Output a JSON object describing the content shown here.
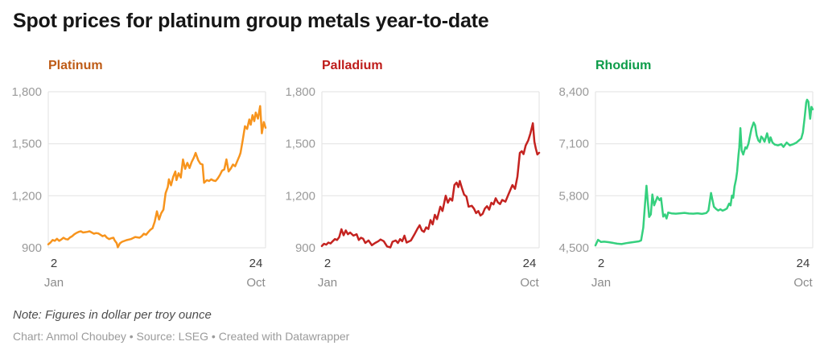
{
  "header": {
    "title": "Spot prices for platinum group metals year-to-date"
  },
  "footer": {
    "note": "Note: Figures in dollar per troy ounce",
    "byline": "Chart: Anmol Choubey • Source: LSEG • Created with Datawrapper"
  },
  "style": {
    "background": "#ffffff",
    "title_color": "#161616",
    "grid_color": "#e2e2e2",
    "axis_label_color": "#9a9a9a",
    "day_label_color": "#3c3c3c",
    "month_label_color": "#8b8b8b",
    "note_color": "#4e4e4e",
    "byline_color": "#9b9b9b"
  },
  "chart_data": [
    {
      "type": "line",
      "title": "Platinum",
      "unit": "dollar per troy ounce",
      "title_color": "#be5b16",
      "line_color": "#f7941d",
      "grid": true,
      "legend": "none",
      "ylim": [
        900,
        1800
      ],
      "y_ticks": [
        {
          "value": 1800,
          "label": "1,800"
        },
        {
          "value": 1500,
          "label": "1,500"
        },
        {
          "value": 1200,
          "label": "1,200"
        },
        {
          "value": 900,
          "label": "900"
        }
      ],
      "x_axis": {
        "start_day": "2",
        "start_month": "Jan",
        "end_day": "24",
        "end_month": "Oct"
      },
      "points": [
        [
          0,
          920
        ],
        [
          0.01,
          930
        ],
        [
          0.02,
          945
        ],
        [
          0.03,
          940
        ],
        [
          0.04,
          952
        ],
        [
          0.05,
          940
        ],
        [
          0.06,
          948
        ],
        [
          0.07,
          958
        ],
        [
          0.08,
          950
        ],
        [
          0.09,
          948
        ],
        [
          0.1,
          960
        ],
        [
          0.11,
          967
        ],
        [
          0.12,
          978
        ],
        [
          0.13,
          986
        ],
        [
          0.14,
          992
        ],
        [
          0.15,
          995
        ],
        [
          0.16,
          988
        ],
        [
          0.17,
          990
        ],
        [
          0.18,
          992
        ],
        [
          0.19,
          995
        ],
        [
          0.2,
          988
        ],
        [
          0.21,
          981
        ],
        [
          0.22,
          985
        ],
        [
          0.23,
          983
        ],
        [
          0.24,
          975
        ],
        [
          0.25,
          967
        ],
        [
          0.26,
          972
        ],
        [
          0.27,
          958
        ],
        [
          0.28,
          950
        ],
        [
          0.29,
          955
        ],
        [
          0.3,
          958
        ],
        [
          0.305,
          944
        ],
        [
          0.315,
          926
        ],
        [
          0.32,
          903
        ],
        [
          0.33,
          926
        ],
        [
          0.34,
          935
        ],
        [
          0.36,
          944
        ],
        [
          0.38,
          950
        ],
        [
          0.4,
          962
        ],
        [
          0.42,
          958
        ],
        [
          0.43,
          967
        ],
        [
          0.44,
          981
        ],
        [
          0.45,
          975
        ],
        [
          0.46,
          990
        ],
        [
          0.47,
          1004
        ],
        [
          0.48,
          1013
        ],
        [
          0.49,
          1051
        ],
        [
          0.5,
          1110
        ],
        [
          0.51,
          1063
        ],
        [
          0.52,
          1100
        ],
        [
          0.53,
          1120
        ],
        [
          0.54,
          1215
        ],
        [
          0.55,
          1250
        ],
        [
          0.555,
          1295
        ],
        [
          0.565,
          1260
        ],
        [
          0.575,
          1310
        ],
        [
          0.585,
          1340
        ],
        [
          0.59,
          1290
        ],
        [
          0.6,
          1330
        ],
        [
          0.61,
          1305
        ],
        [
          0.62,
          1409
        ],
        [
          0.63,
          1355
        ],
        [
          0.64,
          1390
        ],
        [
          0.65,
          1360
        ],
        [
          0.66,
          1395
        ],
        [
          0.67,
          1420
        ],
        [
          0.678,
          1447
        ],
        [
          0.69,
          1405
        ],
        [
          0.7,
          1385
        ],
        [
          0.71,
          1380
        ],
        [
          0.717,
          1275
        ],
        [
          0.73,
          1290
        ],
        [
          0.74,
          1285
        ],
        [
          0.75,
          1295
        ],
        [
          0.76,
          1288
        ],
        [
          0.77,
          1285
        ],
        [
          0.78,
          1300
        ],
        [
          0.79,
          1320
        ],
        [
          0.8,
          1345
        ],
        [
          0.81,
          1352
        ],
        [
          0.82,
          1410
        ],
        [
          0.83,
          1340
        ],
        [
          0.84,
          1357
        ],
        [
          0.85,
          1380
        ],
        [
          0.86,
          1370
        ],
        [
          0.87,
          1400
        ],
        [
          0.88,
          1430
        ],
        [
          0.885,
          1447
        ],
        [
          0.895,
          1520
        ],
        [
          0.905,
          1601
        ],
        [
          0.915,
          1585
        ],
        [
          0.925,
          1640
        ],
        [
          0.932,
          1610
        ],
        [
          0.94,
          1665
        ],
        [
          0.948,
          1630
        ],
        [
          0.955,
          1680
        ],
        [
          0.965,
          1645
        ],
        [
          0.975,
          1717
        ],
        [
          0.983,
          1560
        ],
        [
          0.992,
          1625
        ],
        [
          1,
          1592
        ]
      ]
    },
    {
      "type": "line",
      "title": "Palladium",
      "unit": "dollar per troy ounce",
      "title_color": "#be1c1a",
      "line_color": "#c42320",
      "grid": true,
      "legend": "none",
      "ylim": [
        900,
        1800
      ],
      "y_ticks": [
        {
          "value": 1800,
          "label": "1,800"
        },
        {
          "value": 1500,
          "label": "1,500"
        },
        {
          "value": 1200,
          "label": "1,200"
        },
        {
          "value": 900,
          "label": "900"
        }
      ],
      "x_axis": {
        "start_day": "2",
        "start_month": "Jan",
        "end_day": "24",
        "end_month": "Oct"
      },
      "points": [
        [
          0,
          910
        ],
        [
          0.01,
          923
        ],
        [
          0.02,
          918
        ],
        [
          0.03,
          930
        ],
        [
          0.04,
          925
        ],
        [
          0.05,
          938
        ],
        [
          0.06,
          950
        ],
        [
          0.07,
          945
        ],
        [
          0.08,
          962
        ],
        [
          0.09,
          1007
        ],
        [
          0.1,
          972
        ],
        [
          0.11,
          1000
        ],
        [
          0.12,
          978
        ],
        [
          0.13,
          988
        ],
        [
          0.145,
          970
        ],
        [
          0.16,
          978
        ],
        [
          0.17,
          945
        ],
        [
          0.18,
          958
        ],
        [
          0.19,
          952
        ],
        [
          0.2,
          928
        ],
        [
          0.215,
          942
        ],
        [
          0.23,
          915
        ],
        [
          0.245,
          928
        ],
        [
          0.26,
          938
        ],
        [
          0.27,
          948
        ],
        [
          0.285,
          938
        ],
        [
          0.3,
          908
        ],
        [
          0.315,
          902
        ],
        [
          0.325,
          935
        ],
        [
          0.34,
          942
        ],
        [
          0.35,
          928
        ],
        [
          0.36,
          950
        ],
        [
          0.37,
          938
        ],
        [
          0.38,
          970
        ],
        [
          0.39,
          930
        ],
        [
          0.41,
          942
        ],
        [
          0.425,
          975
        ],
        [
          0.44,
          1010
        ],
        [
          0.45,
          1030
        ],
        [
          0.46,
          1000
        ],
        [
          0.47,
          992
        ],
        [
          0.48,
          1018
        ],
        [
          0.49,
          1008
        ],
        [
          0.5,
          1060
        ],
        [
          0.51,
          1035
        ],
        [
          0.52,
          1090
        ],
        [
          0.53,
          1065
        ],
        [
          0.545,
          1137
        ],
        [
          0.555,
          1112
        ],
        [
          0.57,
          1200
        ],
        [
          0.58,
          1160
        ],
        [
          0.59,
          1185
        ],
        [
          0.6,
          1172
        ],
        [
          0.61,
          1262
        ],
        [
          0.62,
          1276
        ],
        [
          0.628,
          1250
        ],
        [
          0.635,
          1285
        ],
        [
          0.645,
          1242
        ],
        [
          0.655,
          1206
        ],
        [
          0.665,
          1196
        ],
        [
          0.675,
          1137
        ],
        [
          0.69,
          1142
        ],
        [
          0.7,
          1126
        ],
        [
          0.71,
          1100
        ],
        [
          0.72,
          1112
        ],
        [
          0.73,
          1086
        ],
        [
          0.74,
          1096
        ],
        [
          0.75,
          1126
        ],
        [
          0.76,
          1140
        ],
        [
          0.77,
          1120
        ],
        [
          0.78,
          1160
        ],
        [
          0.79,
          1150
        ],
        [
          0.8,
          1186
        ],
        [
          0.81,
          1162
        ],
        [
          0.82,
          1152
        ],
        [
          0.83,
          1176
        ],
        [
          0.845,
          1166
        ],
        [
          0.858,
          1206
        ],
        [
          0.877,
          1262
        ],
        [
          0.889,
          1240
        ],
        [
          0.9,
          1310
        ],
        [
          0.911,
          1447
        ],
        [
          0.92,
          1457
        ],
        [
          0.928,
          1440
        ],
        [
          0.938,
          1490
        ],
        [
          0.95,
          1520
        ],
        [
          0.96,
          1560
        ],
        [
          0.971,
          1618
        ],
        [
          0.978,
          1512
        ],
        [
          0.985,
          1472
        ],
        [
          0.992,
          1438
        ],
        [
          1,
          1448
        ]
      ]
    },
    {
      "type": "line",
      "title": "Rhodium",
      "unit": "dollar per troy ounce",
      "title_color": "#0d9c49",
      "line_color": "#35d07e",
      "grid": true,
      "legend": "none",
      "ylim": [
        4500,
        8400
      ],
      "y_ticks": [
        {
          "value": 8400,
          "label": "8,400"
        },
        {
          "value": 7100,
          "label": "7,100"
        },
        {
          "value": 5800,
          "label": "5,800"
        },
        {
          "value": 4500,
          "label": "4,500"
        }
      ],
      "x_axis": {
        "start_day": "2",
        "start_month": "Jan",
        "end_day": "24",
        "end_month": "Oct"
      },
      "points": [
        [
          0,
          4560
        ],
        [
          0.012,
          4700
        ],
        [
          0.025,
          4645
        ],
        [
          0.04,
          4652
        ],
        [
          0.06,
          4640
        ],
        [
          0.08,
          4622
        ],
        [
          0.1,
          4602
        ],
        [
          0.12,
          4592
        ],
        [
          0.14,
          4615
        ],
        [
          0.16,
          4630
        ],
        [
          0.18,
          4645
        ],
        [
          0.2,
          4660
        ],
        [
          0.21,
          4685
        ],
        [
          0.22,
          5000
        ],
        [
          0.228,
          5600
        ],
        [
          0.235,
          6050
        ],
        [
          0.24,
          5700
        ],
        [
          0.247,
          5270
        ],
        [
          0.255,
          5335
        ],
        [
          0.262,
          5830
        ],
        [
          0.27,
          5560
        ],
        [
          0.285,
          5770
        ],
        [
          0.295,
          5690
        ],
        [
          0.302,
          5740
        ],
        [
          0.312,
          5280
        ],
        [
          0.32,
          5335
        ],
        [
          0.327,
          5232
        ],
        [
          0.335,
          5380
        ],
        [
          0.35,
          5360
        ],
        [
          0.37,
          5352
        ],
        [
          0.39,
          5362
        ],
        [
          0.41,
          5372
        ],
        [
          0.43,
          5356
        ],
        [
          0.45,
          5352
        ],
        [
          0.47,
          5362
        ],
        [
          0.49,
          5346
        ],
        [
          0.51,
          5368
        ],
        [
          0.52,
          5430
        ],
        [
          0.532,
          5870
        ],
        [
          0.545,
          5525
        ],
        [
          0.555,
          5470
        ],
        [
          0.565,
          5432
        ],
        [
          0.575,
          5462
        ],
        [
          0.585,
          5426
        ],
        [
          0.595,
          5450
        ],
        [
          0.605,
          5482
        ],
        [
          0.615,
          5605
        ],
        [
          0.622,
          5560
        ],
        [
          0.628,
          5805
        ],
        [
          0.634,
          5750
        ],
        [
          0.64,
          6030
        ],
        [
          0.647,
          6210
        ],
        [
          0.652,
          6400
        ],
        [
          0.658,
          6810
        ],
        [
          0.662,
          7000
        ],
        [
          0.667,
          7490
        ],
        [
          0.673,
          6930
        ],
        [
          0.68,
          6830
        ],
        [
          0.69,
          7010
        ],
        [
          0.696,
          6980
        ],
        [
          0.704,
          7100
        ],
        [
          0.712,
          7310
        ],
        [
          0.718,
          7475
        ],
        [
          0.728,
          7630
        ],
        [
          0.735,
          7560
        ],
        [
          0.742,
          7310
        ],
        [
          0.75,
          7180
        ],
        [
          0.757,
          7140
        ],
        [
          0.763,
          7280
        ],
        [
          0.77,
          7240
        ],
        [
          0.778,
          7150
        ],
        [
          0.79,
          7360
        ],
        [
          0.8,
          7130
        ],
        [
          0.806,
          7260
        ],
        [
          0.815,
          7130
        ],
        [
          0.825,
          7080
        ],
        [
          0.84,
          7060
        ],
        [
          0.855,
          7090
        ],
        [
          0.865,
          7020
        ],
        [
          0.88,
          7130
        ],
        [
          0.895,
          7060
        ],
        [
          0.91,
          7090
        ],
        [
          0.925,
          7130
        ],
        [
          0.94,
          7200
        ],
        [
          0.947,
          7230
        ],
        [
          0.955,
          7380
        ],
        [
          0.963,
          7765
        ],
        [
          0.97,
          8130
        ],
        [
          0.974,
          8200
        ],
        [
          0.98,
          8150
        ],
        [
          0.988,
          7725
        ],
        [
          0.994,
          8020
        ],
        [
          1,
          7960
        ]
      ]
    }
  ]
}
